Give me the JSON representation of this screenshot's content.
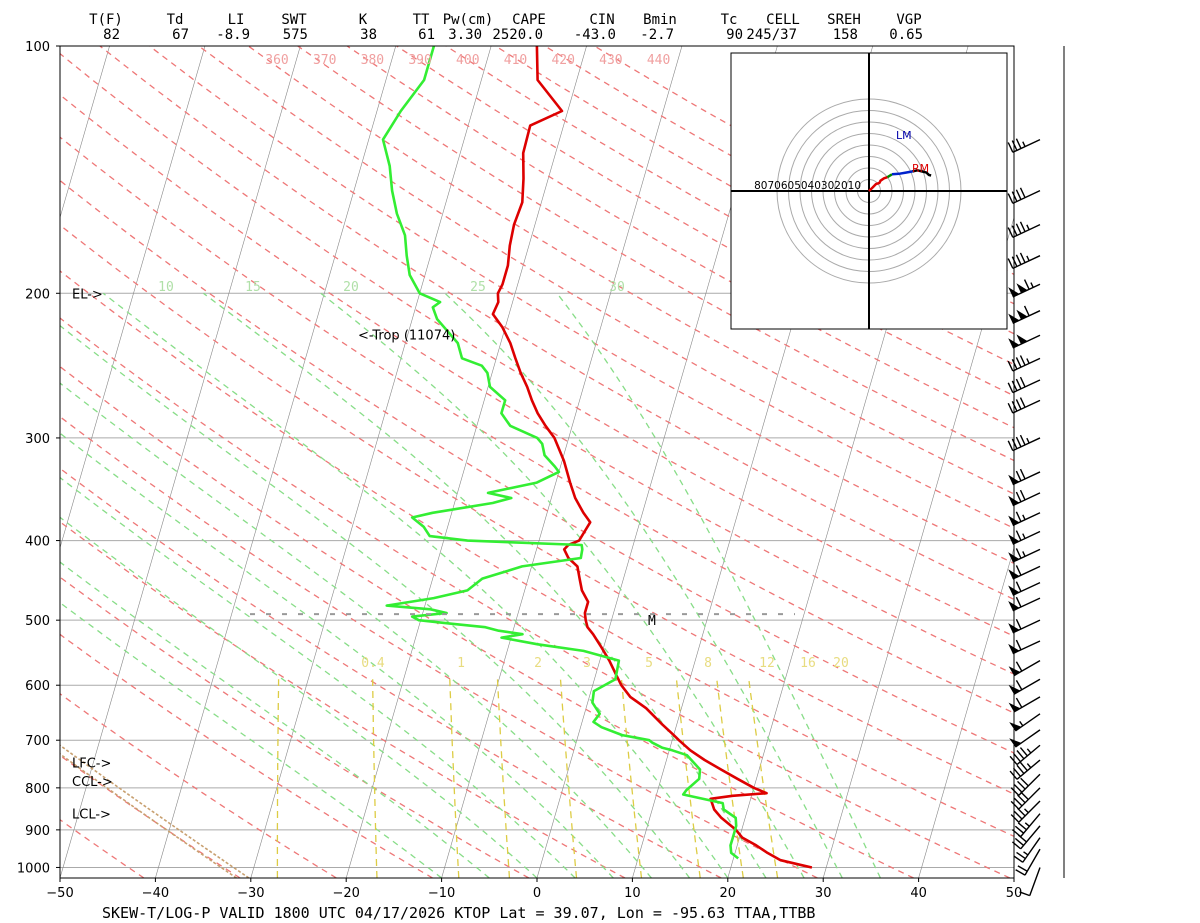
{
  "header": {
    "fields": [
      {
        "label": "T(F)",
        "value": "82"
      },
      {
        "label": "Td",
        "value": "67"
      },
      {
        "label": "LI",
        "value": "-8.9"
      },
      {
        "label": "SWT",
        "value": "575"
      },
      {
        "label": "K",
        "value": "38"
      },
      {
        "label": "TT",
        "value": "61"
      },
      {
        "label": "Pw(cm)",
        "value": "3.30"
      },
      {
        "label": "CAPE",
        "value": "2520.0"
      },
      {
        "label": "CIN",
        "value": "-43.0"
      },
      {
        "label": "Bmin",
        "value": "-2.7"
      },
      {
        "label": "Tc",
        "value": "90"
      },
      {
        "label": "CELL",
        "value": "245/37"
      },
      {
        "label": "SREH",
        "value": "158"
      },
      {
        "label": "VGP",
        "value": "0.65"
      }
    ]
  },
  "footer": "SKEW-T/LOG-P  VALID 1800 UTC 04/17/2026   KTOP    Lat = 39.07, Lon = -95.63    TTAA,TTBB",
  "colors": {
    "temperature": "#dd0000",
    "dewpoint": "#33ee33",
    "dry_adiabat": "#ee7777",
    "moist_adiabat": "#88dd88",
    "mixing_ratio": "#ddcc44",
    "isotherm": "#888888",
    "parcel": "#c8a070"
  },
  "chart_data": {
    "type": "line",
    "title": "",
    "xlabel": "",
    "ylabel": "",
    "x_ticks": [
      -50,
      -40,
      -30,
      -20,
      -10,
      0,
      10,
      20,
      30,
      40,
      50
    ],
    "xlim": [
      -50,
      50
    ],
    "y_scale": "log",
    "ylim": [
      1030,
      100
    ],
    "pressure_ticks": [
      1000,
      900,
      800,
      700,
      600,
      500,
      400,
      300,
      200,
      100
    ],
    "theta_labels": [
      "360",
      "370",
      "380",
      "390",
      "400",
      "410",
      "420",
      "430",
      "440"
    ],
    "moist_labels": [
      "10",
      "15",
      "20",
      "25",
      "30"
    ],
    "mixing_labels": [
      "0.4",
      "1",
      "2",
      "3",
      "5",
      "8",
      "12",
      "16",
      "20"
    ],
    "mixing_values": [
      0.4,
      1,
      2,
      3,
      5,
      8,
      12,
      16,
      20
    ],
    "level_labels": [
      {
        "text": "EL->",
        "p": 200
      },
      {
        "text": "LFC->",
        "p": 745
      },
      {
        "text": "CCL->",
        "p": 785
      },
      {
        "text": "LCL->",
        "p": 860
      }
    ],
    "trop_label": "<-Trop (11074)",
    "trop_p": 225,
    "m_label": "M",
    "series": [
      {
        "name": "",
        "role": "temperature",
        "points": [
          [
            1000,
            28.5
          ],
          [
            995,
            27.6
          ],
          [
            980,
            25.0
          ],
          [
            960,
            23.4
          ],
          [
            940,
            22.0
          ],
          [
            920,
            20.3
          ],
          [
            900,
            19.4
          ],
          [
            870,
            17.5
          ],
          [
            850,
            16.5
          ],
          [
            825,
            15.8
          ],
          [
            818,
            18.0
          ],
          [
            812,
            21.5
          ],
          [
            800,
            20.0
          ],
          [
            780,
            18.0
          ],
          [
            760,
            16.0
          ],
          [
            740,
            14.0
          ],
          [
            720,
            12.2
          ],
          [
            700,
            10.7
          ],
          [
            690,
            10.0
          ],
          [
            670,
            8.5
          ],
          [
            640,
            6.3
          ],
          [
            620,
            4.3
          ],
          [
            600,
            3.0
          ],
          [
            580,
            2.0
          ],
          [
            560,
            1.0
          ],
          [
            540,
            -0.2
          ],
          [
            520,
            -1.5
          ],
          [
            510,
            -2.3
          ],
          [
            500,
            -2.7
          ],
          [
            490,
            -3.0
          ],
          [
            475,
            -3.0
          ],
          [
            460,
            -4.0
          ],
          [
            445,
            -4.6
          ],
          [
            430,
            -5.2
          ],
          [
            420,
            -6.4
          ],
          [
            410,
            -7.1
          ],
          [
            405,
            -6.8
          ],
          [
            400,
            -5.8
          ],
          [
            390,
            -5.5
          ],
          [
            380,
            -5.2
          ],
          [
            370,
            -6.2
          ],
          [
            355,
            -7.5
          ],
          [
            340,
            -8.5
          ],
          [
            320,
            -9.8
          ],
          [
            300,
            -11.5
          ],
          [
            290,
            -12.8
          ],
          [
            280,
            -14.0
          ],
          [
            270,
            -15.0
          ],
          [
            260,
            -15.9
          ],
          [
            250,
            -17.0
          ],
          [
            240,
            -18.0
          ],
          [
            230,
            -19.0
          ],
          [
            220,
            -20.3
          ],
          [
            212,
            -21.7
          ],
          [
            205,
            -21.5
          ],
          [
            200,
            -21.8
          ],
          [
            195,
            -21.6
          ],
          [
            185,
            -21.6
          ],
          [
            175,
            -22.0
          ],
          [
            165,
            -22.2
          ],
          [
            155,
            -22.0
          ],
          [
            145,
            -22.6
          ],
          [
            135,
            -23.4
          ],
          [
            125,
            -23.5
          ],
          [
            120,
            -20.6
          ],
          [
            110,
            -24.1
          ],
          [
            100,
            -25.2
          ]
        ]
      },
      {
        "name": "",
        "role": "dewpoint",
        "points": [
          [
            975,
            20.5
          ],
          [
            960,
            19.6
          ],
          [
            940,
            19.3
          ],
          [
            920,
            19.3
          ],
          [
            905,
            19.3
          ],
          [
            890,
            19.3
          ],
          [
            870,
            19.0
          ],
          [
            850,
            17.5
          ],
          [
            835,
            17.2
          ],
          [
            815,
            12.8
          ],
          [
            805,
            13.0
          ],
          [
            780,
            14.0
          ],
          [
            760,
            13.8
          ],
          [
            730,
            12.0
          ],
          [
            720,
            10.3
          ],
          [
            715,
            9.2
          ],
          [
            705,
            8.0
          ],
          [
            700,
            7.6
          ],
          [
            690,
            4.6
          ],
          [
            675,
            2.2
          ],
          [
            665,
            1.2
          ],
          [
            650,
            1.6
          ],
          [
            630,
            0.5
          ],
          [
            610,
            0.3
          ],
          [
            590,
            2.2
          ],
          [
            560,
            2.0
          ],
          [
            545,
            -2.0
          ],
          [
            535,
            -7.0
          ],
          [
            525,
            -11.0
          ],
          [
            520,
            -8.9
          ],
          [
            515,
            -11.5
          ],
          [
            510,
            -13.0
          ],
          [
            505,
            -16.7
          ],
          [
            500,
            -20.2
          ],
          [
            495,
            -21.0
          ],
          [
            490,
            -17.5
          ],
          [
            485,
            -19.3
          ],
          [
            480,
            -24.0
          ],
          [
            470,
            -19.3
          ],
          [
            460,
            -16.0
          ],
          [
            445,
            -14.8
          ],
          [
            438,
            -13.0
          ],
          [
            430,
            -11.0
          ],
          [
            420,
            -5.1
          ],
          [
            410,
            -5.2
          ],
          [
            405,
            -5.4
          ],
          [
            400,
            -17.5
          ],
          [
            395,
            -21.6
          ],
          [
            385,
            -22.5
          ],
          [
            375,
            -24.0
          ],
          [
            370,
            -22.0
          ],
          [
            360,
            -16.0
          ],
          [
            355,
            -14.2
          ],
          [
            350,
            -16.8
          ],
          [
            340,
            -12.0
          ],
          [
            330,
            -10.0
          ],
          [
            325,
            -10.6
          ],
          [
            315,
            -12.0
          ],
          [
            305,
            -12.6
          ],
          [
            300,
            -13.3
          ],
          [
            290,
            -16.5
          ],
          [
            280,
            -17.8
          ],
          [
            270,
            -17.8
          ],
          [
            260,
            -19.8
          ],
          [
            250,
            -20.5
          ],
          [
            245,
            -21.3
          ],
          [
            240,
            -23.6
          ],
          [
            230,
            -24.5
          ],
          [
            220,
            -26.4
          ],
          [
            215,
            -27.4
          ],
          [
            208,
            -28.2
          ],
          [
            205,
            -27.6
          ],
          [
            200,
            -30.0
          ],
          [
            190,
            -31.6
          ],
          [
            180,
            -32.5
          ],
          [
            170,
            -33.3
          ],
          [
            160,
            -34.8
          ],
          [
            150,
            -36.0
          ],
          [
            140,
            -37.0
          ],
          [
            130,
            -38.5
          ],
          [
            120,
            -37.5
          ],
          [
            110,
            -36.0
          ],
          [
            100,
            -36.0
          ]
        ]
      }
    ],
    "wind_barbs": [
      {
        "p": 1000,
        "dir": 200,
        "kt": 10
      },
      {
        "p": 950,
        "dir": 210,
        "kt": 20
      },
      {
        "p": 920,
        "dir": 215,
        "kt": 25
      },
      {
        "p": 890,
        "dir": 220,
        "kt": 30
      },
      {
        "p": 860,
        "dir": 220,
        "kt": 35
      },
      {
        "p": 830,
        "dir": 225,
        "kt": 35
      },
      {
        "p": 800,
        "dir": 225,
        "kt": 40
      },
      {
        "p": 770,
        "dir": 225,
        "kt": 40
      },
      {
        "p": 740,
        "dir": 230,
        "kt": 45
      },
      {
        "p": 710,
        "dir": 230,
        "kt": 45
      },
      {
        "p": 680,
        "dir": 235,
        "kt": 50
      },
      {
        "p": 650,
        "dir": 235,
        "kt": 55
      },
      {
        "p": 620,
        "dir": 240,
        "kt": 60
      },
      {
        "p": 590,
        "dir": 240,
        "kt": 60
      },
      {
        "p": 560,
        "dir": 240,
        "kt": 60
      },
      {
        "p": 530,
        "dir": 245,
        "kt": 60
      },
      {
        "p": 500,
        "dir": 245,
        "kt": 60
      },
      {
        "p": 470,
        "dir": 245,
        "kt": 60
      },
      {
        "p": 450,
        "dir": 245,
        "kt": 60
      },
      {
        "p": 430,
        "dir": 245,
        "kt": 60
      },
      {
        "p": 410,
        "dir": 245,
        "kt": 65
      },
      {
        "p": 390,
        "dir": 245,
        "kt": 65
      },
      {
        "p": 370,
        "dir": 245,
        "kt": 65
      },
      {
        "p": 350,
        "dir": 245,
        "kt": 70
      },
      {
        "p": 330,
        "dir": 245,
        "kt": 70
      },
      {
        "p": 300,
        "dir": 245,
        "kt": 45
      },
      {
        "p": 270,
        "dir": 245,
        "kt": 40
      },
      {
        "p": 255,
        "dir": 245,
        "kt": 40
      },
      {
        "p": 240,
        "dir": 245,
        "kt": 45
      },
      {
        "p": 225,
        "dir": 245,
        "kt": 100
      },
      {
        "p": 210,
        "dir": 245,
        "kt": 110
      },
      {
        "p": 195,
        "dir": 245,
        "kt": 115
      },
      {
        "p": 180,
        "dir": 245,
        "kt": 45
      },
      {
        "p": 165,
        "dir": 245,
        "kt": 45
      },
      {
        "p": 150,
        "dir": 245,
        "kt": 40
      },
      {
        "p": 130,
        "dir": 245,
        "kt": 35
      }
    ],
    "hodograph": {
      "ring_labels": [
        "80",
        "70",
        "60",
        "50",
        "40",
        "30",
        "20",
        "10"
      ],
      "lm_label": "LM",
      "rm_label": "RM",
      "trace": [
        [
          0,
          0
        ],
        [
          3,
          3
        ],
        [
          6,
          6
        ],
        [
          9,
          7
        ],
        [
          10,
          9
        ],
        [
          13,
          11
        ],
        [
          16,
          12
        ],
        [
          20,
          14.5
        ],
        [
          26,
          15
        ],
        [
          32,
          16
        ],
        [
          38,
          17
        ],
        [
          42,
          18
        ],
        [
          46,
          17
        ],
        [
          50,
          16
        ],
        [
          52,
          14
        ],
        [
          54,
          13.5
        ]
      ]
    }
  }
}
